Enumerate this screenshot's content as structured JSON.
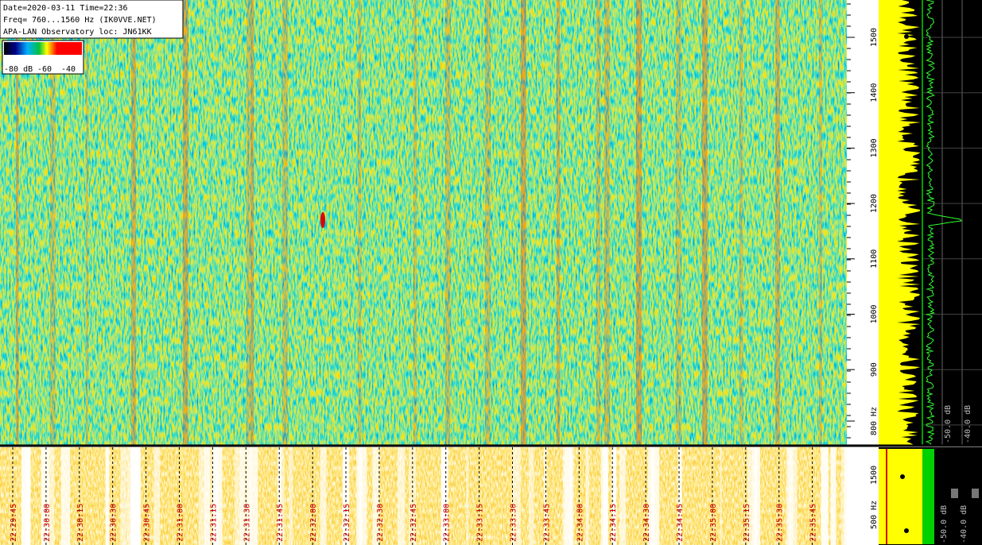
{
  "header": {
    "lines": [
      "Date=2020-03-11 Time=22:36",
      "Freq= 760...1560 Hz (IK0VVE.NET)",
      "APA-LAN Observatory loc: JN61KK"
    ]
  },
  "colorbar": {
    "labels": [
      "-80 dB",
      "-60",
      "-40"
    ]
  },
  "frequency_axis": {
    "labels": [
      "1500",
      "1400",
      "1300",
      "1200",
      "1100",
      "1000",
      "900",
      "800 Hz"
    ]
  },
  "level_axis": {
    "labels": [
      "-50.0 dB",
      "-40.0 dB"
    ]
  },
  "time_axis": {
    "labels": [
      "22:29:45",
      "22:30:00",
      "22:30:15",
      "22:30:30",
      "22:30:45",
      "22:31:00",
      "22:31:15",
      "22:31:30",
      "22:31:45",
      "22:32:00",
      "22:32:15",
      "22:32:30",
      "22:32:45",
      "22:33:00",
      "22:33:15",
      "22:33:30",
      "22:33:45",
      "22:34:00",
      "22:34:15",
      "22:34:30",
      "22:34:45",
      "22:35:00",
      "22:35:15",
      "22:35:30",
      "22:35:45"
    ]
  },
  "lower_frequency_axis": {
    "labels": [
      "1500",
      "500 Hz"
    ]
  },
  "lower_level_axis": {
    "labels": [
      "-50.0 dB",
      "-40.0 dB"
    ]
  }
}
